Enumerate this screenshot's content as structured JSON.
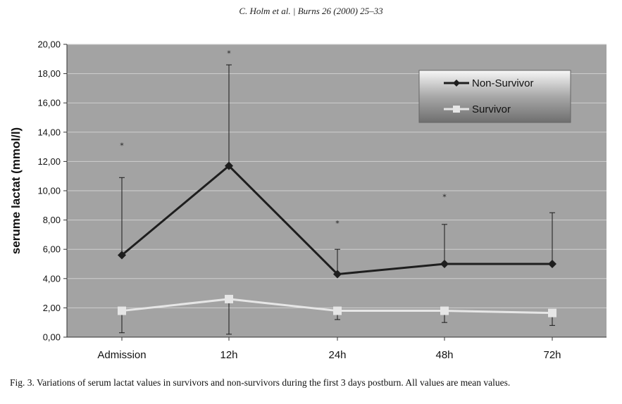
{
  "header": {
    "text": "C. Holm et al. | Burns 26 (2000) 25–33"
  },
  "caption": {
    "text": "Fig. 3. Variations of serum lactat values in survivors and non-survivors during the first 3 days postburn. All values are mean values."
  },
  "chart_data": {
    "type": "line",
    "title": "",
    "xlabel": "",
    "ylabel": "serume lactat (mmol/l)",
    "categories": [
      "Admission",
      "12h",
      "24h",
      "48h",
      "72h"
    ],
    "ylim": [
      0,
      20
    ],
    "yticks": [
      "0,00",
      "2,00",
      "4,00",
      "6,00",
      "8,00",
      "10,00",
      "12,00",
      "14,00",
      "16,00",
      "18,00",
      "20,00"
    ],
    "grid": true,
    "legend": "top-right",
    "series": [
      {
        "name": "Non-Survivor",
        "color": "#1e1e1e",
        "values": [
          5.6,
          11.7,
          4.3,
          5.0,
          5.0
        ],
        "error_upper": [
          10.9,
          18.6,
          6.0,
          7.7,
          8.5
        ],
        "marker": "diamond"
      },
      {
        "name": "Survivor",
        "color": "#e6e6e6",
        "values": [
          1.8,
          2.6,
          1.8,
          1.8,
          1.65
        ],
        "error_lower": [
          0.3,
          0.2,
          1.2,
          1.0,
          0.8
        ],
        "marker": "square"
      }
    ],
    "significance_marks": [
      {
        "category": "Admission",
        "y": 13.1,
        "symbol": "*"
      },
      {
        "category": "12h",
        "y": 19.4,
        "symbol": "*"
      },
      {
        "category": "24h",
        "y": 7.8,
        "symbol": "*"
      },
      {
        "category": "48h",
        "y": 9.6,
        "symbol": "*"
      }
    ]
  }
}
